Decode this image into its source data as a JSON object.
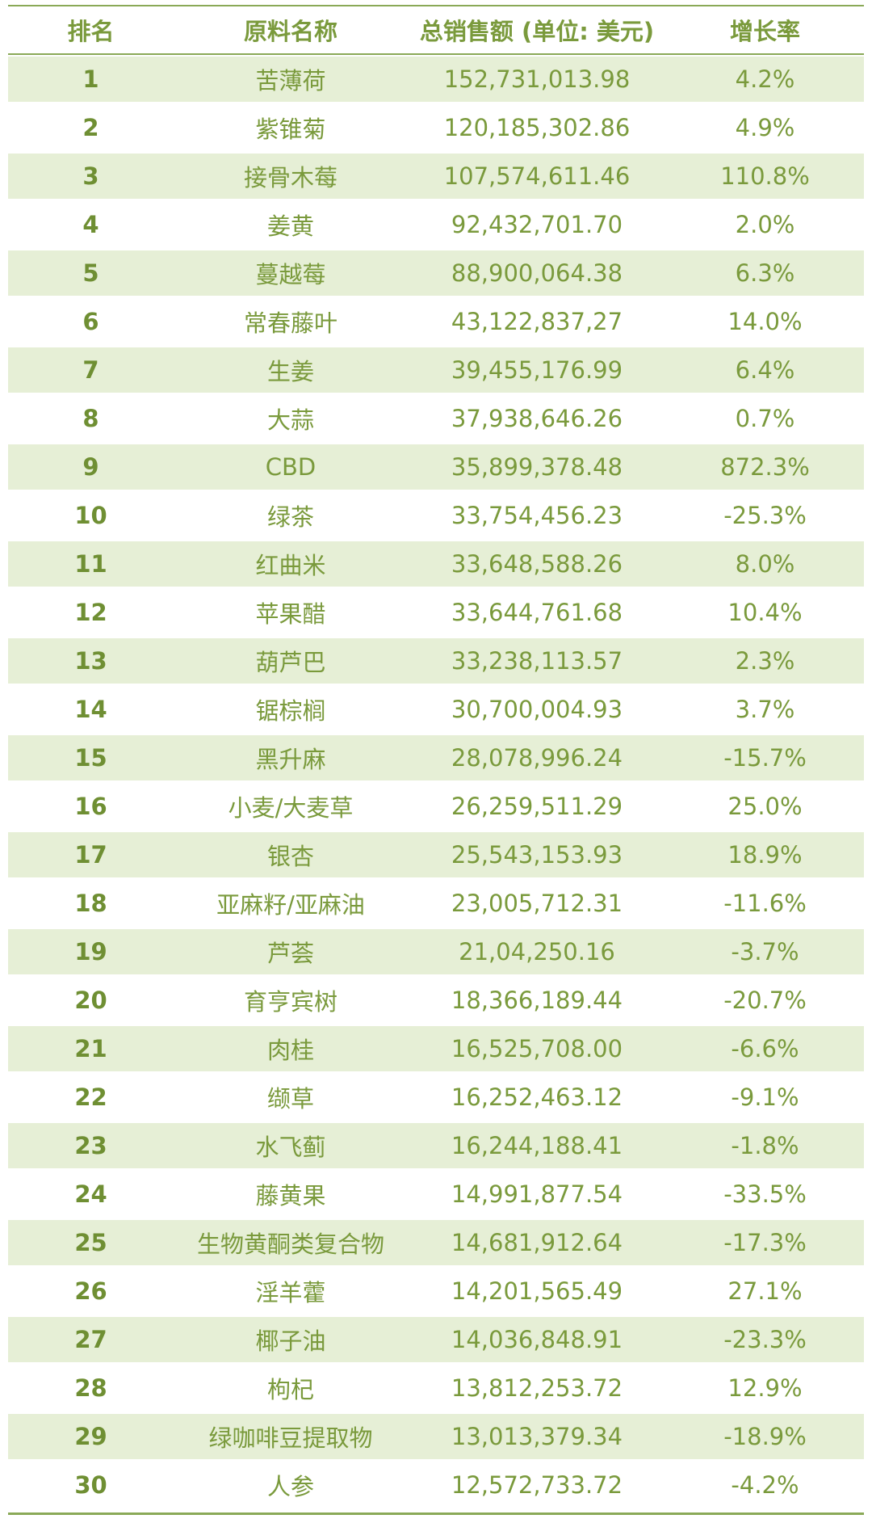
{
  "header": {
    "rank": "排名",
    "name": "原料名称",
    "sales": "总销售额 (单位: 美元)",
    "growth": "增长率"
  },
  "colors": {
    "accent": "#7a9a3c",
    "band": "#e6efd6",
    "rule": "#8aa957"
  },
  "rows": [
    {
      "rank": "1",
      "name": "苦薄荷",
      "sales": "152,731,013.98",
      "growth": "4.2%"
    },
    {
      "rank": "2",
      "name": "紫锥菊",
      "sales": "120,185,302.86",
      "growth": "4.9%"
    },
    {
      "rank": "3",
      "name": "接骨木莓",
      "sales": "107,574,611.46",
      "growth": "110.8%"
    },
    {
      "rank": "4",
      "name": "姜黄",
      "sales": "92,432,701.70",
      "growth": "2.0%"
    },
    {
      "rank": "5",
      "name": "蔓越莓",
      "sales": "88,900,064.38",
      "growth": "6.3%"
    },
    {
      "rank": "6",
      "name": "常春藤叶",
      "sales": "43,122,837,27",
      "growth": "14.0%"
    },
    {
      "rank": "7",
      "name": "生姜",
      "sales": "39,455,176.99",
      "growth": "6.4%"
    },
    {
      "rank": "8",
      "name": "大蒜",
      "sales": "37,938,646.26",
      "growth": "0.7%"
    },
    {
      "rank": "9",
      "name": "CBD",
      "sales": "35,899,378.48",
      "growth": "872.3%"
    },
    {
      "rank": "10",
      "name": "绿茶",
      "sales": "33,754,456.23",
      "growth": "-25.3%"
    },
    {
      "rank": "11",
      "name": "红曲米",
      "sales": "33,648,588.26",
      "growth": "8.0%"
    },
    {
      "rank": "12",
      "name": "苹果醋",
      "sales": "33,644,761.68",
      "growth": "10.4%"
    },
    {
      "rank": "13",
      "name": "葫芦巴",
      "sales": "33,238,113.57",
      "growth": "2.3%"
    },
    {
      "rank": "14",
      "name": "锯棕榈",
      "sales": "30,700,004.93",
      "growth": "3.7%"
    },
    {
      "rank": "15",
      "name": "黑升麻",
      "sales": "28,078,996.24",
      "growth": "-15.7%"
    },
    {
      "rank": "16",
      "name": "小麦/大麦草",
      "sales": "26,259,511.29",
      "growth": "25.0%"
    },
    {
      "rank": "17",
      "name": "银杏",
      "sales": "25,543,153.93",
      "growth": "18.9%"
    },
    {
      "rank": "18",
      "name": "亚麻籽/亚麻油",
      "sales": "23,005,712.31",
      "growth": "-11.6%"
    },
    {
      "rank": "19",
      "name": "芦荟",
      "sales": "21,04,250.16",
      "growth": "-3.7%"
    },
    {
      "rank": "20",
      "name": "育亨宾树",
      "sales": "18,366,189.44",
      "growth": "-20.7%"
    },
    {
      "rank": "21",
      "name": "肉桂",
      "sales": "16,525,708.00",
      "growth": "-6.6%"
    },
    {
      "rank": "22",
      "name": "缬草",
      "sales": "16,252,463.12",
      "growth": "-9.1%"
    },
    {
      "rank": "23",
      "name": "水飞蓟",
      "sales": "16,244,188.41",
      "growth": "-1.8%"
    },
    {
      "rank": "24",
      "name": "藤黄果",
      "sales": "14,991,877.54",
      "growth": "-33.5%"
    },
    {
      "rank": "25",
      "name": "生物黄酮类复合物",
      "sales": "14,681,912.64",
      "growth": "-17.3%"
    },
    {
      "rank": "26",
      "name": "淫羊藿",
      "sales": "14,201,565.49",
      "growth": "27.1%"
    },
    {
      "rank": "27",
      "name": "椰子油",
      "sales": "14,036,848.91",
      "growth": "-23.3%"
    },
    {
      "rank": "28",
      "name": "枸杞",
      "sales": "13,812,253.72",
      "growth": "12.9%"
    },
    {
      "rank": "29",
      "name": "绿咖啡豆提取物",
      "sales": "13,013,379.34",
      "growth": "-18.9%"
    },
    {
      "rank": "30",
      "name": "人参",
      "sales": "12,572,733.72",
      "growth": "-4.2%"
    }
  ]
}
